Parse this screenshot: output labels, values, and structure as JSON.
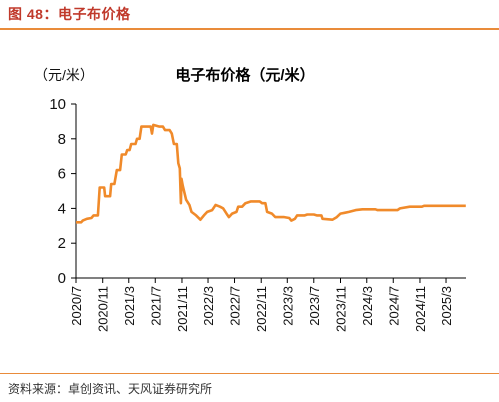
{
  "figure_header": "图 48：电子布价格",
  "source_note": "资料来源：卓创资讯、天风证券研究所",
  "chart_data": {
    "type": "line",
    "title": "电子布价格（元/米）",
    "ylabel": "（元/米）",
    "xlabel": "",
    "ylim": [
      0,
      10
    ],
    "yticks": [
      0,
      2,
      4,
      6,
      8,
      10
    ],
    "xlim": [
      "2020-07",
      "2025-06"
    ],
    "xticks": [
      "2020/7",
      "2020/11",
      "2021/3",
      "2021/7",
      "2021/11",
      "2022/3",
      "2022/7",
      "2022/11",
      "2023/3",
      "2023/7",
      "2023/11",
      "2024/3",
      "2024/7",
      "2024/11",
      "2025/3"
    ],
    "grid": false,
    "color": "#f08a2a",
    "series": [
      {
        "name": "",
        "points": [
          [
            "2020-07-01",
            3.2
          ],
          [
            "2020-07-25",
            3.2
          ],
          [
            "2020-08-01",
            3.3
          ],
          [
            "2020-08-20",
            3.4
          ],
          [
            "2020-09-10",
            3.45
          ],
          [
            "2020-09-20",
            3.6
          ],
          [
            "2020-10-10",
            3.6
          ],
          [
            "2020-10-18",
            5.2
          ],
          [
            "2020-11-08",
            5.2
          ],
          [
            "2020-11-12",
            4.7
          ],
          [
            "2020-12-05",
            4.7
          ],
          [
            "2020-12-10",
            5.4
          ],
          [
            "2020-12-25",
            5.4
          ],
          [
            "2021-01-05",
            6.2
          ],
          [
            "2021-01-20",
            6.2
          ],
          [
            "2021-01-28",
            7.1
          ],
          [
            "2021-02-15",
            7.1
          ],
          [
            "2021-02-22",
            7.35
          ],
          [
            "2021-03-05",
            7.35
          ],
          [
            "2021-03-12",
            7.7
          ],
          [
            "2021-04-01",
            7.7
          ],
          [
            "2021-04-08",
            8.0
          ],
          [
            "2021-04-20",
            8.0
          ],
          [
            "2021-04-28",
            8.7
          ],
          [
            "2021-06-10",
            8.7
          ],
          [
            "2021-06-16",
            8.3
          ],
          [
            "2021-06-22",
            8.8
          ],
          [
            "2021-07-20",
            8.7
          ],
          [
            "2021-08-05",
            8.7
          ],
          [
            "2021-08-15",
            8.5
          ],
          [
            "2021-09-05",
            8.5
          ],
          [
            "2021-09-15",
            8.3
          ],
          [
            "2021-09-25",
            7.7
          ],
          [
            "2021-10-08",
            7.7
          ],
          [
            "2021-10-15",
            6.6
          ],
          [
            "2021-10-22",
            6.3
          ],
          [
            "2021-10-27",
            4.3
          ],
          [
            "2021-10-30",
            5.7
          ],
          [
            "2021-11-05",
            5.3
          ],
          [
            "2021-11-20",
            4.5
          ],
          [
            "2021-12-05",
            4.2
          ],
          [
            "2021-12-15",
            3.8
          ],
          [
            "2022-01-05",
            3.6
          ],
          [
            "2022-01-25",
            3.35
          ],
          [
            "2022-02-10",
            3.6
          ],
          [
            "2022-02-25",
            3.8
          ],
          [
            "2022-03-20",
            3.9
          ],
          [
            "2022-04-05",
            4.2
          ],
          [
            "2022-04-25",
            4.1
          ],
          [
            "2022-05-10",
            4.0
          ],
          [
            "2022-05-25",
            3.7
          ],
          [
            "2022-06-05",
            3.5
          ],
          [
            "2022-06-20",
            3.7
          ],
          [
            "2022-07-10",
            3.8
          ],
          [
            "2022-07-18",
            4.1
          ],
          [
            "2022-08-05",
            4.1
          ],
          [
            "2022-08-20",
            4.3
          ],
          [
            "2022-09-15",
            4.4
          ],
          [
            "2022-10-25",
            4.4
          ],
          [
            "2022-11-05",
            4.3
          ],
          [
            "2022-11-20",
            4.3
          ],
          [
            "2022-11-28",
            3.8
          ],
          [
            "2022-12-20",
            3.7
          ],
          [
            "2023-01-05",
            3.5
          ],
          [
            "2023-02-15",
            3.5
          ],
          [
            "2023-03-10",
            3.45
          ],
          [
            "2023-03-20",
            3.3
          ],
          [
            "2023-04-05",
            3.4
          ],
          [
            "2023-04-15",
            3.6
          ],
          [
            "2023-05-20",
            3.6
          ],
          [
            "2023-06-01",
            3.65
          ],
          [
            "2023-07-01",
            3.65
          ],
          [
            "2023-07-15",
            3.6
          ],
          [
            "2023-08-05",
            3.6
          ],
          [
            "2023-08-10",
            3.4
          ],
          [
            "2023-09-25",
            3.35
          ],
          [
            "2023-10-15",
            3.5
          ],
          [
            "2023-11-01",
            3.7
          ],
          [
            "2023-11-20",
            3.75
          ],
          [
            "2023-12-10",
            3.8
          ],
          [
            "2024-01-10",
            3.9
          ],
          [
            "2024-02-10",
            3.95
          ],
          [
            "2024-04-10",
            3.95
          ],
          [
            "2024-04-20",
            3.9
          ],
          [
            "2024-07-20",
            3.9
          ],
          [
            "2024-08-01",
            4.0
          ],
          [
            "2024-09-15",
            4.1
          ],
          [
            "2024-11-10",
            4.1
          ],
          [
            "2024-11-20",
            4.15
          ],
          [
            "2025-05-31",
            4.15
          ]
        ]
      }
    ]
  }
}
